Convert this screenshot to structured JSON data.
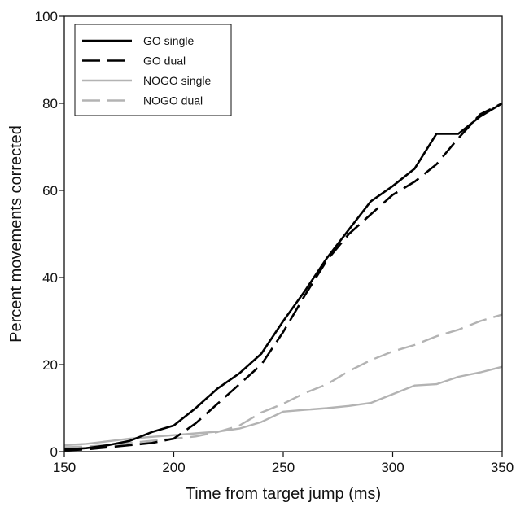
{
  "chart_data": {
    "type": "line",
    "title": "",
    "xlabel": "Time from target jump (ms)",
    "ylabel": "Percent movements corrected",
    "xlim": [
      150,
      350
    ],
    "ylim": [
      0,
      100
    ],
    "xticks": [
      150,
      200,
      250,
      300,
      350
    ],
    "yticks": [
      0,
      20,
      40,
      60,
      80,
      100
    ],
    "grid": false,
    "legend_position": "top-left",
    "series": [
      {
        "name": "GO single",
        "color": "#000000",
        "dash": "solid",
        "x": [
          150,
          160,
          170,
          180,
          190,
          200,
          210,
          220,
          230,
          240,
          250,
          260,
          270,
          280,
          290,
          300,
          310,
          320,
          330,
          340,
          350
        ],
        "y": [
          0.5,
          0.8,
          1.5,
          2.5,
          4.5,
          6,
          10,
          14.5,
          18,
          22.5,
          30,
          37,
          44.5,
          51,
          57.5,
          61,
          65,
          73,
          73,
          77,
          80
        ]
      },
      {
        "name": "GO dual",
        "color": "#000000",
        "dash": "dashed",
        "x": [
          150,
          160,
          170,
          180,
          190,
          200,
          210,
          220,
          230,
          240,
          250,
          260,
          270,
          280,
          290,
          300,
          310,
          320,
          330,
          340,
          350
        ],
        "y": [
          0.3,
          0.5,
          1,
          1.5,
          2,
          3,
          6.5,
          11,
          15.5,
          20,
          27.5,
          36,
          44,
          50,
          54.5,
          59,
          62,
          66,
          72,
          77.5,
          80
        ]
      },
      {
        "name": "NOGO single",
        "color": "#b3b3b3",
        "dash": "solid",
        "x": [
          150,
          160,
          170,
          180,
          190,
          200,
          210,
          220,
          230,
          240,
          250,
          260,
          270,
          280,
          290,
          300,
          310,
          320,
          330,
          340,
          350
        ],
        "y": [
          1.5,
          1.8,
          2.4,
          3,
          3.4,
          3.8,
          4.2,
          4.6,
          5.3,
          6.8,
          9.2,
          9.6,
          10,
          10.5,
          11.2,
          13.2,
          15.2,
          15.5,
          17.2,
          18.2,
          19.5
        ]
      },
      {
        "name": "NOGO dual",
        "color": "#b3b3b3",
        "dash": "dashed",
        "x": [
          150,
          160,
          170,
          180,
          190,
          200,
          210,
          220,
          230,
          240,
          250,
          260,
          270,
          280,
          290,
          300,
          310,
          320,
          330,
          340,
          350
        ],
        "y": [
          1,
          1.2,
          1.5,
          2,
          2.5,
          3,
          3.5,
          4.5,
          6,
          9,
          11,
          13.5,
          15.5,
          18.5,
          21,
          23,
          24.5,
          26.5,
          28,
          30,
          31.5
        ]
      }
    ]
  }
}
